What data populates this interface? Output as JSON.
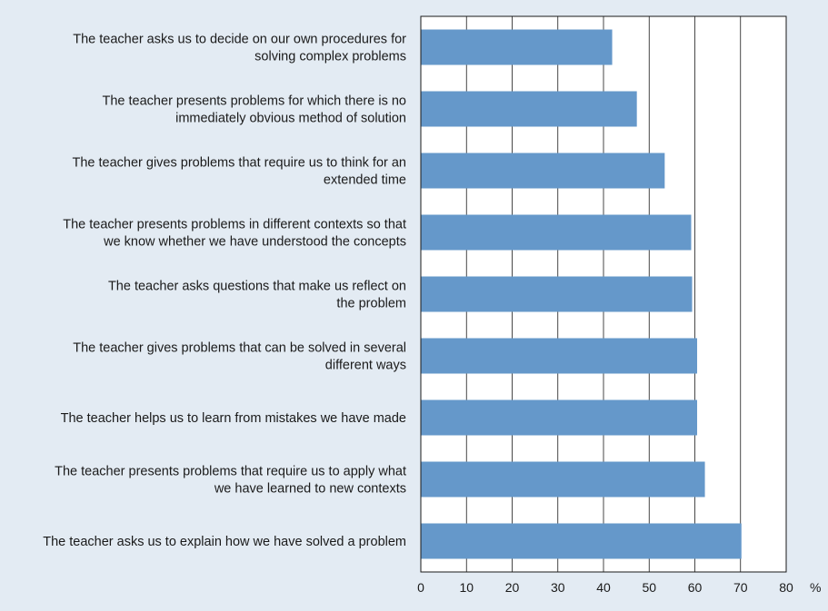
{
  "chart_data": {
    "type": "bar",
    "orientation": "horizontal",
    "title": "",
    "xlabel": "",
    "ylabel": "",
    "unit_label": "%",
    "xlim": [
      0,
      80
    ],
    "x_ticks": [
      0,
      10,
      20,
      30,
      40,
      50,
      60,
      70,
      80
    ],
    "grid": true,
    "bar_color": "#6598ca",
    "categories": [
      [
        "The teacher asks us to decide on our own procedures for",
        "solving complex problems"
      ],
      [
        "The teacher presents problems for which there is no",
        "immediately obvious method of solution"
      ],
      [
        "The teacher gives problems that require us to think for an",
        "extended time"
      ],
      [
        "The teacher presents problems in different contexts so that",
        "we know whether we have understood the concepts"
      ],
      [
        "The teacher asks questions that make us reflect on",
        "the problem"
      ],
      [
        "The teacher gives problems that can be solved in several",
        "different ways"
      ],
      [
        "The teacher helps us to learn from mistakes we have made"
      ],
      [
        "The teacher presents problems that require us to apply what",
        "we have learned to new contexts"
      ],
      [
        "The teacher asks us to explain how we have solved a problem"
      ]
    ],
    "values": [
      41.9,
      47.3,
      53.4,
      59.2,
      59.4,
      60.5,
      60.5,
      62.2,
      70.2
    ]
  }
}
